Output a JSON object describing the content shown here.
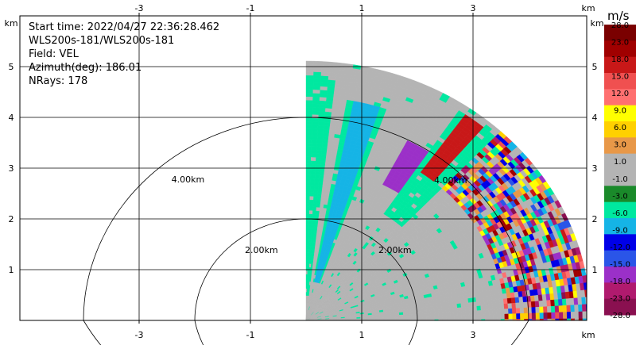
{
  "chart_data": {
    "type": "heatmap",
    "subtype": "radar-ppi-sector",
    "info_lines": [
      "Start time: 2022/04/27 22:36:28.462",
      "WLS200s-181/WLS200s-181",
      "Field: VEL",
      "Azimuth(deg): 186.01",
      "NRays: 178"
    ],
    "x_unit": "km",
    "y_unit": "km",
    "xlim": [
      -4,
      5
    ],
    "ylim": [
      0,
      5.3
    ],
    "x_ticks": [
      -3,
      -1,
      1,
      3
    ],
    "y_ticks": [
      1,
      2,
      3,
      4,
      5
    ],
    "grid": true,
    "range_rings": [
      {
        "radius_km": 2,
        "label": "2.00km"
      },
      {
        "radius_km": 4,
        "label": "4.00km"
      }
    ],
    "data_extent": {
      "x_min_km": 0,
      "max_range_km": 5.1,
      "azimuth_coverage": "0-90 deg sector"
    },
    "colorbar": {
      "unit": "m/s",
      "levels": [
        -28.0,
        -23.0,
        -18.0,
        -15.0,
        -12.0,
        -9.0,
        -6.0,
        -3.0,
        -1.0,
        1.0,
        3.0,
        6.0,
        9.0,
        12.0,
        15.0,
        18.0,
        23.0,
        28.0
      ],
      "labels": [
        "-28.0",
        "-23.0",
        "-18.0",
        "-15.0",
        "-12.0",
        "-9.0",
        "-6.0",
        "-3.0",
        "-1.0",
        "1.0",
        "3.0",
        "6.0",
        "9.0",
        "12.0",
        "15.0",
        "18.0",
        "23.0",
        "28.0"
      ],
      "colors": [
        "#8a1050",
        "#b01a6e",
        "#9b30c8",
        "#2a55e8",
        "#0000e8",
        "#15b4e6",
        "#00e8a0",
        "#1a8a2a",
        "#b4b4b4",
        "#b4b4b4",
        "#e89848",
        "#ffd000",
        "#ffff00",
        "#ff7070",
        "#f05050",
        "#c81818",
        "#a00000",
        "#7a0000"
      ]
    },
    "velocity_regions": [
      {
        "feature": "background",
        "velocity_ms": 0
      },
      {
        "feature": "near-ground band",
        "r_km": [
          0.5,
          4.8
        ],
        "velocity_ms": -4
      },
      {
        "feature": "jet core",
        "r_km": [
          0.8,
          4.4
        ],
        "velocity_ms": -7
      },
      {
        "feature": "mid band",
        "r_km": [
          2.5,
          5.0
        ],
        "velocity_ms": -4
      },
      {
        "feature": "strong negative streak",
        "r_km": [
          3.0,
          4.0
        ],
        "velocity_ms": -17
      },
      {
        "feature": "strong positive streak",
        "r_km": [
          3.6,
          5.0
        ],
        "velocity_ms": 20
      },
      {
        "feature": "noisy upper region",
        "r_km": [
          3.6,
          5.1
        ],
        "velocity_ms": "mixed"
      }
    ]
  }
}
